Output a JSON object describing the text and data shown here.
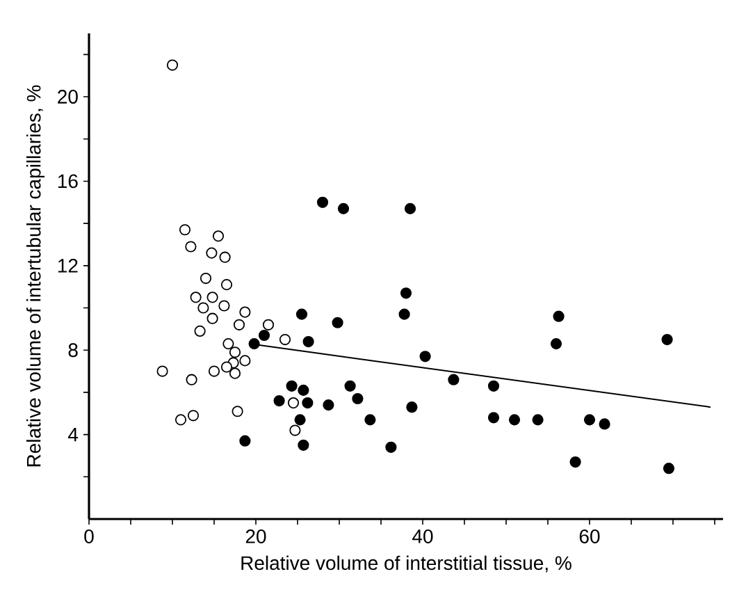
{
  "chart_data": {
    "type": "scatter",
    "xlabel": "Relative volume of interstitial tissue, %",
    "ylabel": "Relative volume of intertubular capillaries, %",
    "xlim": [
      0,
      76
    ],
    "ylim": [
      0,
      23
    ],
    "xticks": [
      0,
      {
        "value": 5,
        "label": null
      },
      {
        "value": 10,
        "label": null
      },
      {
        "value": 15,
        "label": null
      },
      20,
      {
        "value": 25,
        "label": null
      },
      {
        "value": 30,
        "label": null
      },
      {
        "value": 35,
        "label": null
      },
      40,
      {
        "value": 45,
        "label": null
      },
      {
        "value": 50,
        "label": null
      },
      {
        "value": 55,
        "label": null
      },
      60,
      {
        "value": 65,
        "label": null
      },
      {
        "value": 70,
        "label": null
      },
      {
        "value": 75,
        "label": null
      }
    ],
    "yticks": [
      {
        "value": 2,
        "label": null
      },
      4,
      {
        "value": 6,
        "label": null
      },
      8,
      {
        "value": 10,
        "label": null
      },
      12,
      {
        "value": 14,
        "label": null
      },
      16,
      {
        "value": 18,
        "label": null
      },
      20,
      {
        "value": 22,
        "label": null
      }
    ],
    "grid": false,
    "marker": "circle",
    "series": [
      {
        "color": "#ffffff",
        "x": [
          10,
          11.5,
          15.5,
          12.2,
          14.7,
          16.3,
          14.0,
          16.5,
          12.8,
          14.8,
          16.2,
          13.7,
          18.7,
          14.8,
          18.0,
          21.5,
          13.3,
          23.5,
          16.7,
          17.5,
          18.7,
          17.3,
          16.5,
          15.0,
          8.8,
          17.5,
          12.3,
          24.5,
          17.8,
          12.5,
          11.0,
          24.7
        ],
        "values": [
          21.5,
          13.7,
          13.4,
          12.9,
          12.6,
          12.4,
          11.4,
          11.1,
          10.5,
          10.5,
          10.1,
          10.0,
          9.8,
          9.5,
          9.2,
          9.2,
          8.9,
          8.5,
          8.3,
          7.9,
          7.5,
          7.4,
          7.2,
          7.0,
          7.0,
          6.9,
          6.6,
          5.5,
          5.1,
          4.9,
          4.7,
          4.2
        ]
      },
      {
        "color": "#000000",
        "x": [
          28,
          30.5,
          25.5,
          29.8,
          21.0,
          19.8,
          26.3,
          24.3,
          25.7,
          31.3,
          32.2,
          22.8,
          26.2,
          28.7,
          25.3,
          18.7,
          25.7,
          38.5,
          38.0,
          37.8,
          56.3,
          56.0,
          69.3,
          40.3,
          43.7,
          48.5,
          33.7,
          38.7,
          36.2,
          48.5,
          51.0,
          53.8,
          60.0,
          61.8,
          58.3,
          69.5
        ],
        "values": [
          15.0,
          14.7,
          9.7,
          9.3,
          8.7,
          8.3,
          8.4,
          6.3,
          6.1,
          6.3,
          5.7,
          5.6,
          5.5,
          5.4,
          4.7,
          3.7,
          3.5,
          14.7,
          10.7,
          9.7,
          9.6,
          8.3,
          8.5,
          7.7,
          6.6,
          6.3,
          4.7,
          5.3,
          3.4,
          4.8,
          4.7,
          4.7,
          4.7,
          4.5,
          2.7,
          2.4
        ]
      },
      {
        "type": "line",
        "color": "#000000",
        "line_style": "solid",
        "marker": "none",
        "x": [
          19.2,
          74.5
        ],
        "values": [
          8.3,
          5.3
        ]
      }
    ]
  }
}
